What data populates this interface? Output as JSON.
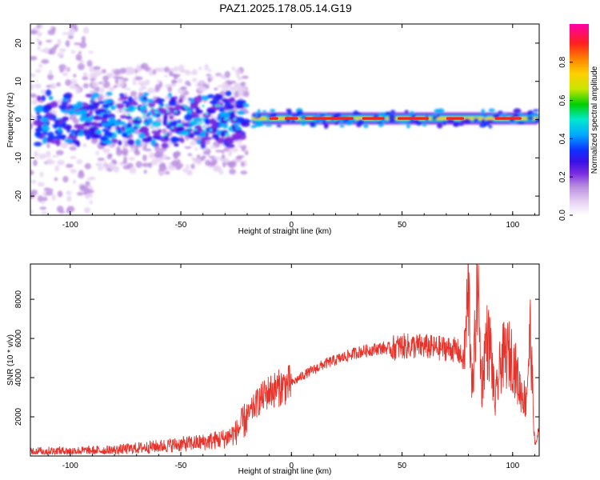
{
  "title": "PAZ1.2025.178.05.14.G19",
  "colors": {
    "snr_line": "#e8332b",
    "colormap": [
      "#ffffff",
      "#e6d2f2",
      "#b98de0",
      "#7a2be0",
      "#3a10e6",
      "#1030ff",
      "#00a8ff",
      "#00e8d0",
      "#00d000",
      "#c8e600",
      "#ffd000",
      "#ff8000",
      "#ff1e1e",
      "#ff00aa"
    ]
  },
  "chart_data": [
    {
      "type": "heatmap",
      "xlabel": "Height of straight line (km)",
      "ylabel": "Frequency (Hz)",
      "xlim": [
        -118,
        112
      ],
      "ylim": [
        -25,
        25
      ],
      "xticks": [
        -100,
        -50,
        0,
        50,
        100
      ],
      "yticks": [
        -20,
        -10,
        0,
        10,
        20
      ],
      "colorbar": {
        "label": "Normalized spectral amplitude",
        "range": [
          0,
          1
        ],
        "ticks": [
          "0.0",
          "0.2",
          "0.4",
          "0.6",
          "0.8"
        ]
      },
      "description_values": {
        "noise_region_x": [
          -118,
          -20
        ],
        "signal_line_freq_hz": 0.3,
        "signal_region_x": [
          -20,
          112
        ]
      }
    },
    {
      "type": "line",
      "xlabel": "Height of straight line (km)",
      "ylabel": "SNR (10 * v/v)",
      "xlim": [
        -118,
        112
      ],
      "ylim": [
        0,
        9800
      ],
      "xticks": [
        -100,
        -50,
        0,
        50,
        100
      ],
      "yticks": [
        2000,
        4000,
        6000,
        8000
      ],
      "series": [
        {
          "x": [
            -118,
            -100,
            -80,
            -70,
            -60,
            -50,
            -40,
            -30,
            -25,
            -20,
            -15,
            -10,
            -5,
            0,
            5,
            10,
            15,
            20,
            25,
            30,
            35,
            40,
            45,
            50,
            55,
            60,
            65,
            70,
            75,
            78,
            80,
            82,
            84,
            86,
            88,
            90,
            92,
            95,
            98,
            100,
            103,
            106,
            108,
            110,
            112
          ],
          "y": [
            250,
            250,
            300,
            400,
            500,
            600,
            700,
            900,
            1200,
            2000,
            2800,
            3300,
            3500,
            3700,
            4100,
            4400,
            4700,
            4900,
            5100,
            5300,
            5400,
            5500,
            5500,
            5600,
            5600,
            5600,
            5500,
            5500,
            5400,
            4800,
            8500,
            3000,
            9300,
            3500,
            6000,
            5500,
            2600,
            5000,
            5200,
            5000,
            3500,
            2800,
            6300,
            500,
            1300
          ]
        }
      ]
    }
  ]
}
